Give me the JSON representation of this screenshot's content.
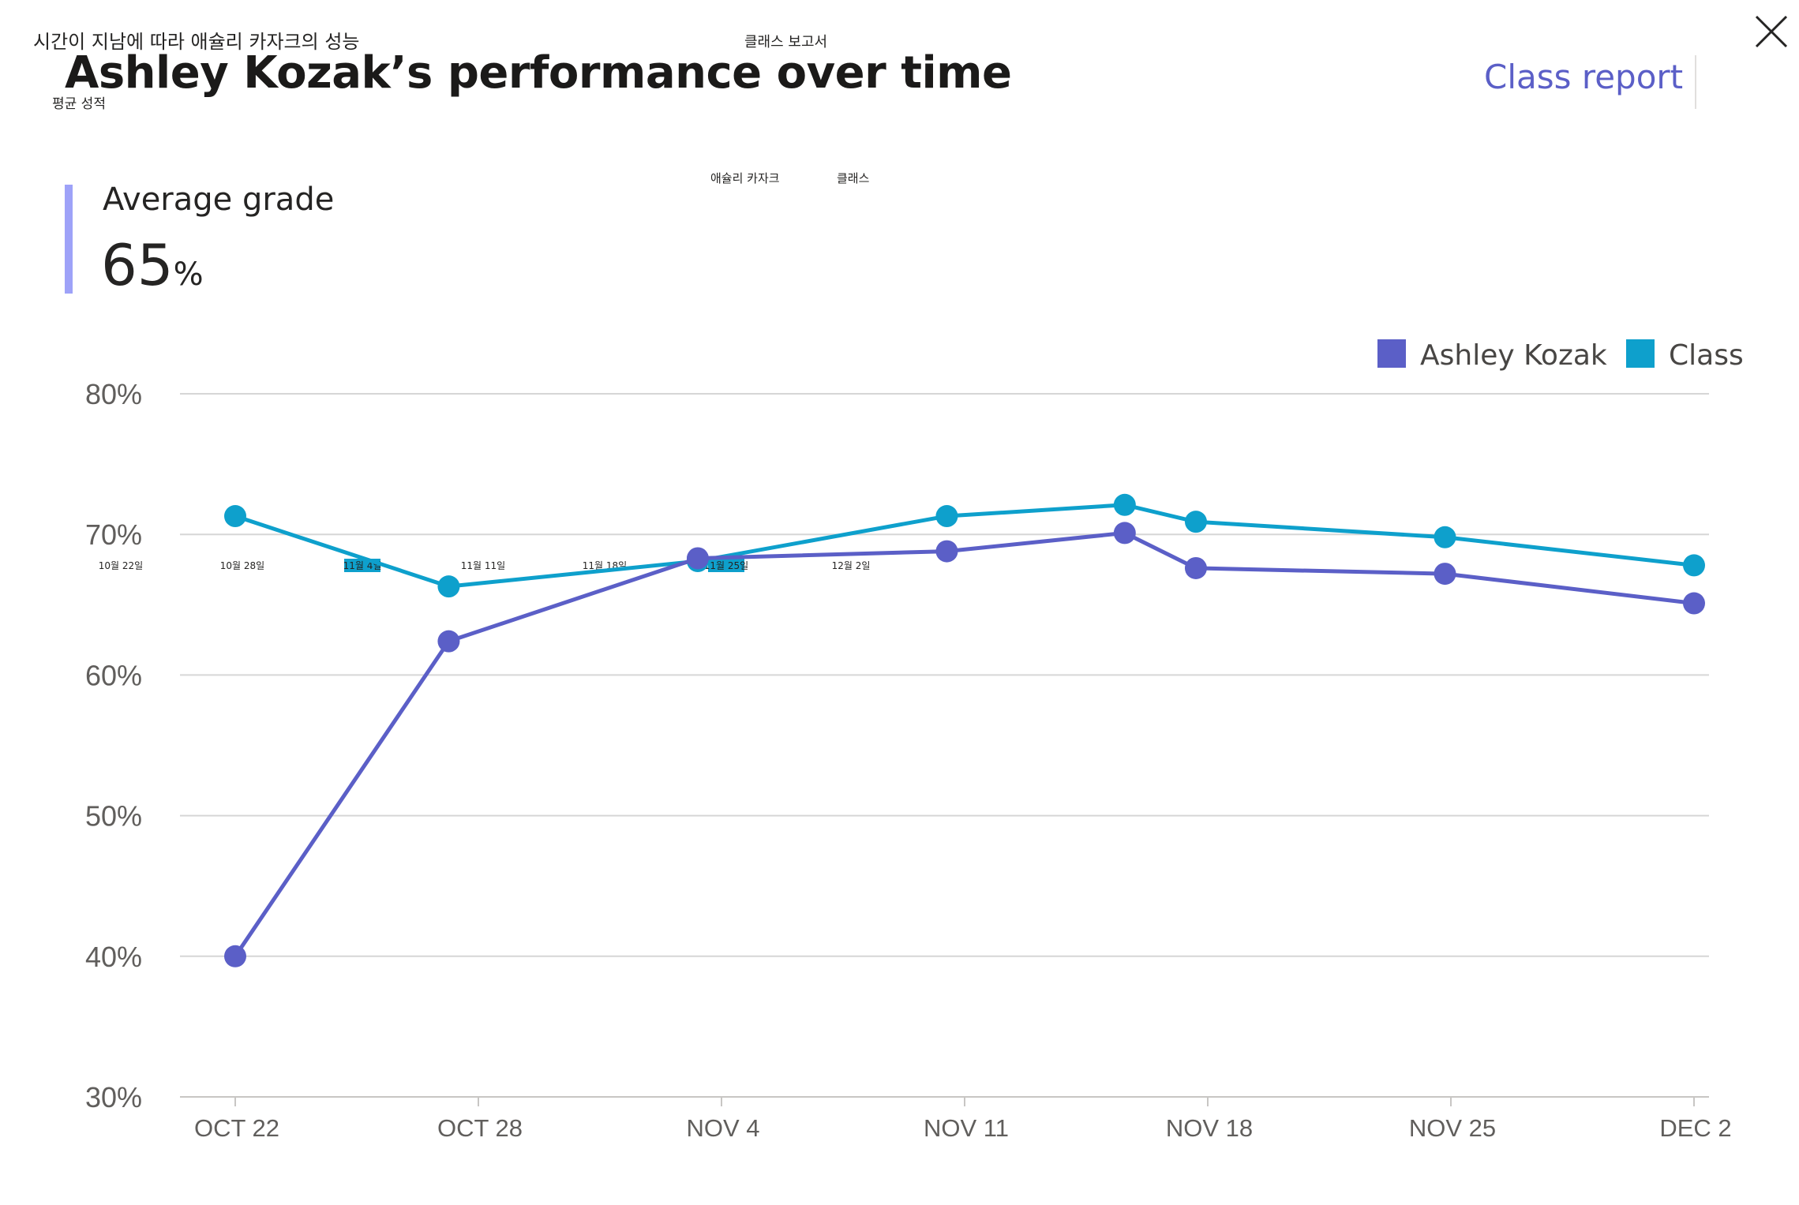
{
  "korean": {
    "title": "시간이 지남에 따라 애슐리 카자크의 성능",
    "class_report": "클래스 보고서",
    "average_grade": "평균 성적",
    "legend_student": "애슐리 카자크",
    "legend_class": "클래스",
    "dates": [
      "10월 22일",
      "10월 28일",
      "11월 4일",
      "11월 11일",
      "11월 18일",
      "11월 25일",
      "12월 2일"
    ]
  },
  "header": {
    "title": "Ashley Kozak’s performance over time",
    "class_report_link": "Class report",
    "close_icon": "close-icon"
  },
  "summary": {
    "label": "Average grade",
    "value": "65",
    "unit": "%"
  },
  "colors": {
    "student": "#5b5fc7",
    "class": "#0ea0cc",
    "accent_bar": "#9ea2f8",
    "link": "#5b5fc7"
  },
  "chart_data": {
    "type": "line",
    "title": "",
    "xlabel": "",
    "ylabel": "",
    "ylim": [
      30,
      80
    ],
    "yticks": [
      "80%",
      "70%",
      "60%",
      "50%",
      "40%",
      "30%"
    ],
    "x_ticks": [
      "OCT 22",
      "OCT 28",
      "NOV 4",
      "NOV 11",
      "NOV 18",
      "NOV 25",
      "DEC 2"
    ],
    "x_range": [
      "2019-10-22",
      "2019-12-02"
    ],
    "legend": "top-right",
    "grid": true,
    "series": [
      {
        "name": "Ashley Kozak",
        "color": "#5b5fc7",
        "points": [
          {
            "x": "2019-10-22",
            "y": 40
          },
          {
            "x": "2019-10-28",
            "y": 62.4
          },
          {
            "x": "2019-11-04",
            "y": 68.3
          },
          {
            "x": "2019-11-11",
            "y": 68.8
          },
          {
            "x": "2019-11-16",
            "y": 70.1
          },
          {
            "x": "2019-11-18",
            "y": 67.6
          },
          {
            "x": "2019-11-25",
            "y": 67.2
          },
          {
            "x": "2019-12-02",
            "y": 65.1
          }
        ]
      },
      {
        "name": "Class",
        "color": "#0ea0cc",
        "points": [
          {
            "x": "2019-10-22",
            "y": 71.3
          },
          {
            "x": "2019-10-28",
            "y": 66.3
          },
          {
            "x": "2019-11-04",
            "y": 68.1
          },
          {
            "x": "2019-11-11",
            "y": 71.3
          },
          {
            "x": "2019-11-16",
            "y": 72.1
          },
          {
            "x": "2019-11-18",
            "y": 70.9
          },
          {
            "x": "2019-11-25",
            "y": 69.8
          },
          {
            "x": "2019-12-02",
            "y": 67.8
          }
        ]
      }
    ]
  }
}
